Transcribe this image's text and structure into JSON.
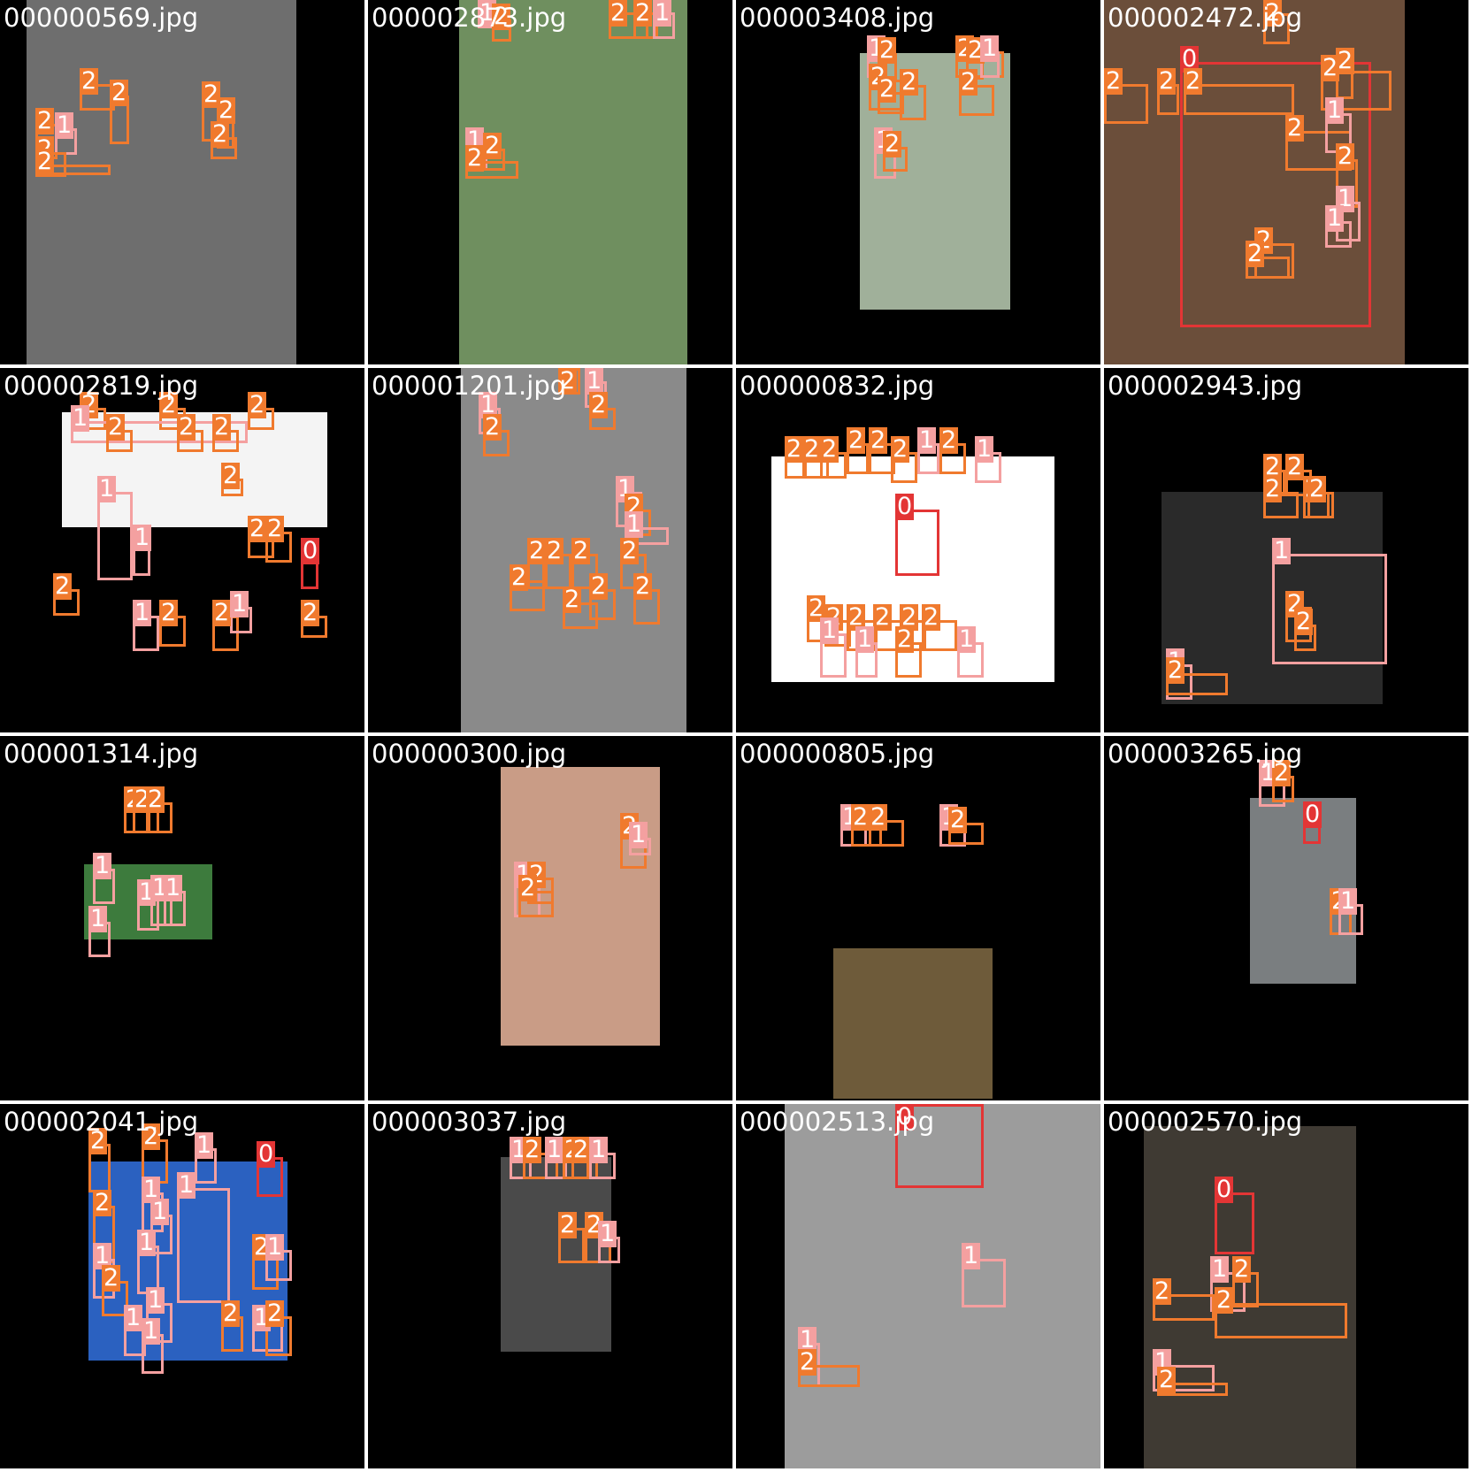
{
  "tiles": [
    {
      "file": "000000569.jpg",
      "labels": [
        "2",
        "2",
        "2",
        "2",
        "2",
        "1",
        "2",
        "2",
        "2"
      ]
    },
    {
      "file": "000002873.jpg",
      "labels": [
        "1",
        "2",
        "2",
        "2",
        "1",
        "1",
        "2",
        "2"
      ]
    },
    {
      "file": "000003408.jpg",
      "labels": [
        "1",
        "2",
        "2",
        "2",
        "1",
        "2",
        "2",
        "2",
        "2",
        "1",
        "2"
      ]
    },
    {
      "file": "000002472.jpg",
      "labels": [
        "0",
        "2",
        "2",
        "2",
        "2",
        "2",
        "2",
        "2",
        "1",
        "2",
        "1",
        "1",
        "2",
        "2"
      ]
    },
    {
      "file": "000002819.jpg",
      "labels": [
        "2",
        "2",
        "2",
        "1",
        "2",
        "2",
        "2",
        "2",
        "1",
        "1",
        "2",
        "2",
        "0",
        "2",
        "1",
        "2",
        "2",
        "1",
        "2"
      ]
    },
    {
      "file": "000001201.jpg",
      "labels": [
        "1",
        "2",
        "2",
        "1",
        "2",
        "1",
        "2",
        "1",
        "2",
        "2",
        "2",
        "2",
        "2",
        "2",
        "2",
        "2"
      ]
    },
    {
      "file": "000000832.jpg",
      "labels": [
        "2",
        "2",
        "2",
        "2",
        "2",
        "2",
        "1",
        "2",
        "1",
        "0",
        "2",
        "2",
        "2",
        "2",
        "2",
        "2",
        "1",
        "1",
        "2",
        "1"
      ]
    },
    {
      "file": "000002943.jpg",
      "labels": [
        "2",
        "2",
        "2",
        "2",
        "2",
        "1",
        "2",
        "2",
        "1",
        "2"
      ]
    },
    {
      "file": "000001314.jpg",
      "labels": [
        "2",
        "2",
        "2",
        "1",
        "1",
        "1",
        "1",
        "1"
      ]
    },
    {
      "file": "000000300.jpg",
      "labels": [
        "2",
        "1",
        "1",
        "2",
        "2"
      ]
    },
    {
      "file": "000000805.jpg",
      "labels": [
        "1",
        "2",
        "2",
        "1",
        "2"
      ]
    },
    {
      "file": "000003265.jpg",
      "labels": [
        "1",
        "2",
        "0",
        "2",
        "1"
      ]
    },
    {
      "file": "000002041.jpg",
      "labels": [
        "2",
        "2",
        "1",
        "1",
        "0",
        "1",
        "2",
        "1",
        "1",
        "2",
        "1",
        "1",
        "2",
        "1",
        "1",
        "2",
        "1",
        "2",
        "1"
      ]
    },
    {
      "file": "000003037.jpg",
      "labels": [
        "1",
        "2",
        "1",
        "2",
        "2",
        "1",
        "2",
        "2",
        "1"
      ]
    },
    {
      "file": "000002513.jpg",
      "labels": [
        "0",
        "1",
        "1",
        "2"
      ]
    },
    {
      "file": "000002570.jpg",
      "labels": [
        "0",
        "1",
        "2",
        "2",
        "2",
        "1",
        "2"
      ]
    }
  ],
  "colors": {
    "class0": "#e33535",
    "class1": "#f4a0a0",
    "class2": "#f07a2e"
  }
}
